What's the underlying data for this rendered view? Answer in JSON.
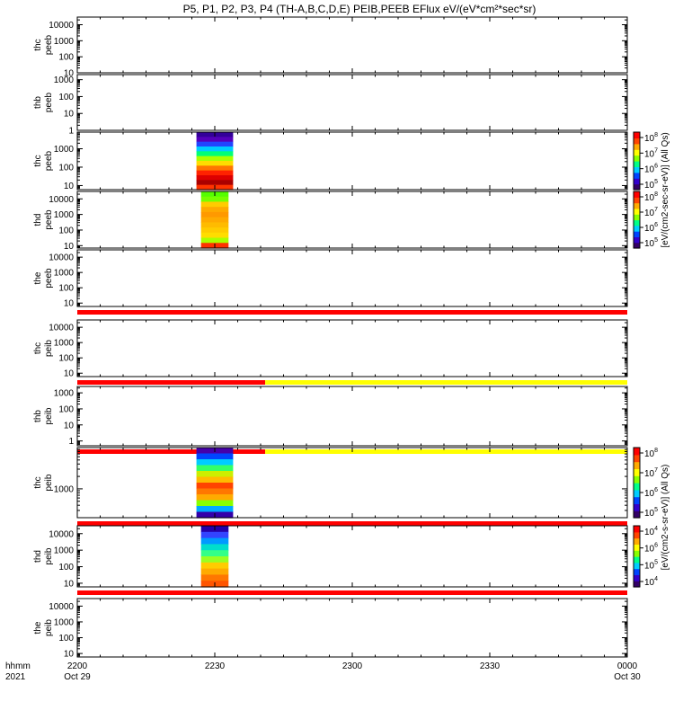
{
  "chart_data": {
    "type": "heatmap",
    "title": "P5, P1, P2, P3, P4 (TH-A,B,C,D,E) PEIB,PEEB EFlux eV/(eV*cm²*sec*sr)",
    "x_axis": {
      "label_top": "hhmm",
      "label_bottom": "2021",
      "ticks": [
        {
          "label": "2200",
          "sub": "Oct 29",
          "minutes": 0
        },
        {
          "label": "2230",
          "sub": "",
          "minutes": 30
        },
        {
          "label": "2300",
          "sub": "",
          "minutes": 60
        },
        {
          "label": "2330",
          "sub": "",
          "minutes": 90
        },
        {
          "label": "0000",
          "sub": "Oct 30",
          "minutes": 120
        }
      ],
      "range_minutes": [
        0,
        120
      ]
    },
    "panels": [
      {
        "probe": "thc",
        "inst": "peeb",
        "ylim": [
          10,
          30000
        ],
        "yticks": [
          "10",
          "100",
          "1000",
          "10000"
        ],
        "data": null,
        "bars": []
      },
      {
        "probe": "thb",
        "inst": "peeb",
        "ylim": [
          1,
          2000
        ],
        "yticks": [
          "1",
          "10",
          "100",
          "1000"
        ],
        "data": null,
        "bars": []
      },
      {
        "probe": "thc",
        "inst": "peeb",
        "ylim": [
          6,
          8000
        ],
        "yticks": [
          "10",
          "100",
          "1000"
        ],
        "data": {
          "t_start": 26,
          "t_end": 34,
          "colors": [
            "#330099",
            "#5500bb",
            "#2244ff",
            "#00ccff",
            "#00ff77",
            "#aaff00",
            "#ffdd00",
            "#ff7700",
            "#ff2200",
            "#dd0000",
            "#aa0000",
            "#ff3300"
          ]
        },
        "bars": []
      },
      {
        "probe": "thd",
        "inst": "peeb",
        "ylim": [
          7,
          30000
        ],
        "yticks": [
          "10",
          "100",
          "1000",
          "10000"
        ],
        "data": {
          "t_start": 27,
          "t_end": 33,
          "colors": [
            "#55ff00",
            "#77ff00",
            "#ffcc00",
            "#ffaa00",
            "#ff9900",
            "#ffaa00",
            "#ffbb00",
            "#ffcc00",
            "#ffdd00",
            "#aaff00",
            "#ff3300"
          ]
        },
        "bars": []
      },
      {
        "probe": "the",
        "inst": "peeb",
        "ylim": [
          6,
          30000
        ],
        "yticks": [
          "10",
          "100",
          "1000",
          "10000"
        ],
        "data": null,
        "bars": [
          {
            "t_start": 0,
            "t_end": 120,
            "color": "#ff0000"
          }
        ]
      },
      {
        "probe": "thc",
        "inst": "peib",
        "ylim": [
          6,
          30000
        ],
        "yticks": [
          "10",
          "100",
          "1000",
          "10000"
        ],
        "data": null,
        "bars": [
          {
            "t_start": 0,
            "t_end": 41,
            "color": "#ff0000"
          },
          {
            "t_start": 41,
            "t_end": 120,
            "color": "#ffff00"
          }
        ]
      },
      {
        "probe": "thb",
        "inst": "peib",
        "ylim": [
          0.5,
          2500
        ],
        "yticks": [
          "1",
          "10",
          "100",
          "1000"
        ],
        "data": null,
        "bars": [
          {
            "t_start": 0,
            "t_end": 41,
            "color": "#ff0000"
          },
          {
            "t_start": 41,
            "t_end": 120,
            "color": "#ffff00"
          }
        ]
      },
      {
        "probe": "thc",
        "inst": "peib",
        "ylim": [
          200,
          10000
        ],
        "yticks": [
          "1000"
        ],
        "data": {
          "t_start": 26,
          "t_end": 34,
          "colors": [
            "#4400aa",
            "#0044ff",
            "#00ccff",
            "#33ff66",
            "#ccee00",
            "#ffbb00",
            "#ff4400",
            "#ff7700",
            "#ffaa00",
            "#88ff00",
            "#00aaff",
            "#3300aa"
          ]
        },
        "bars": [
          {
            "t_start": 0,
            "t_end": 120,
            "color": "#ff0000"
          }
        ]
      },
      {
        "probe": "thd",
        "inst": "peib",
        "ylim": [
          6,
          30000
        ],
        "yticks": [
          "10",
          "100",
          "1000",
          "10000"
        ],
        "data": {
          "t_start": 27,
          "t_end": 33,
          "colors": [
            "#2200aa",
            "#3344ff",
            "#0099ff",
            "#00ddcc",
            "#33ff88",
            "#99ff22",
            "#ffcc00",
            "#ffaa00",
            "#ff7700",
            "#ff5500"
          ]
        },
        "bars": [
          {
            "t_start": 0,
            "t_end": 120,
            "color": "#ff0000"
          }
        ]
      },
      {
        "probe": "the",
        "inst": "peib",
        "ylim": [
          6,
          30000
        ],
        "yticks": [
          "10",
          "100",
          "1000",
          "10000"
        ],
        "data": null,
        "bars": []
      }
    ],
    "colorbars": [
      {
        "label": "[eV/(cm2-sec-sr-eV)] (All Qs)",
        "panels": [
          2,
          4
        ],
        "ticks": [
          {
            "mant": "10",
            "exp": "8"
          },
          {
            "mant": "10",
            "exp": "7"
          },
          {
            "mant": "10",
            "exp": "6"
          },
          {
            "mant": "10",
            "exp": "5"
          },
          {
            "mant": "10",
            "exp": "8"
          },
          {
            "mant": "10",
            "exp": "7"
          },
          {
            "mant": "10",
            "exp": "6"
          },
          {
            "mant": "10",
            "exp": "5"
          }
        ]
      },
      {
        "label": "[eV/(cm2-s-sr-eV)] (All Qs)",
        "panels": [
          7,
          9
        ],
        "ticks": [
          {
            "mant": "10",
            "exp": "8"
          },
          {
            "mant": "10",
            "exp": "7"
          },
          {
            "mant": "10",
            "exp": "6"
          },
          {
            "mant": "10",
            "exp": "5"
          },
          {
            "mant": "10",
            "exp": "4"
          },
          {
            "mant": "10",
            "exp": "6"
          },
          {
            "mant": "10",
            "exp": "5"
          },
          {
            "mant": "10",
            "exp": "4"
          }
        ]
      }
    ],
    "colorscale": [
      "#330066",
      "#3300cc",
      "#0044ff",
      "#00ccff",
      "#00ff88",
      "#88ff00",
      "#ffff00",
      "#ffaa00",
      "#ff4400",
      "#ff0000"
    ]
  }
}
